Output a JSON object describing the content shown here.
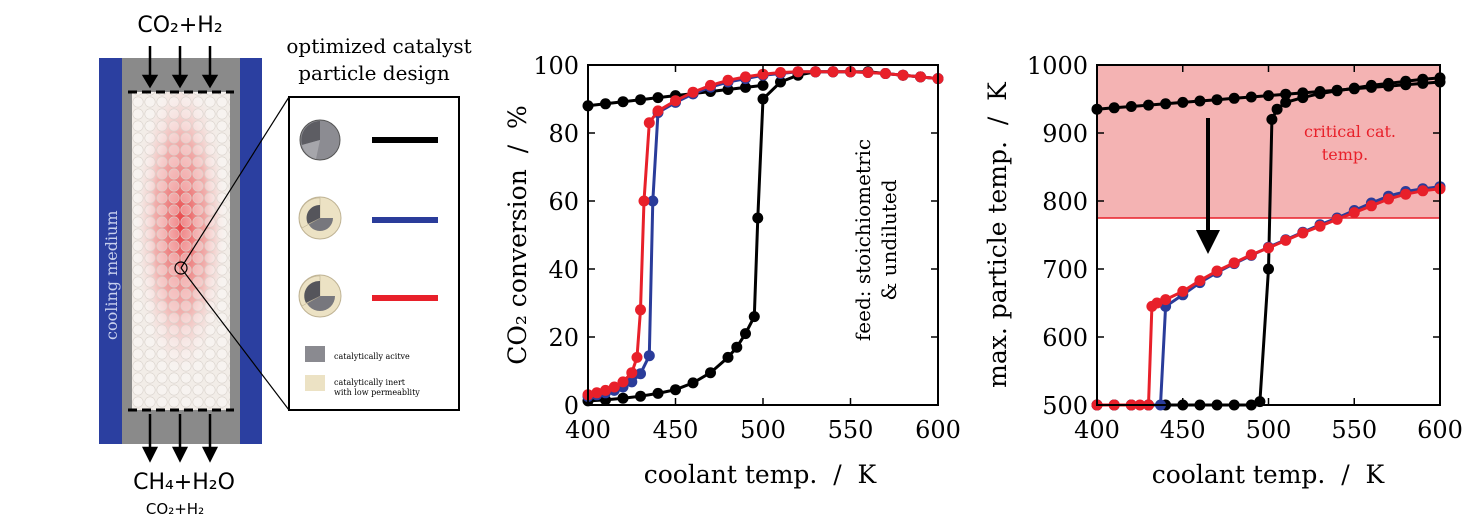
{
  "schematic": {
    "inlet_label": "CO₂+H₂",
    "outlet_label": "CH₄+H₂O",
    "outlet_sub_label": "CO₂+H₂",
    "cooling_label": "cooling medium",
    "design_title_line1": "optimized catalyst",
    "design_title_line2": "particle design",
    "legend_active": "catalytically acitve",
    "legend_inert_line1": "catalytically inert",
    "legend_inert_line2": "with low permeablity",
    "colors": {
      "cooling": "#2b3fa0",
      "reactor_wall": "#8a8a8a",
      "hotspot": "#e8393c",
      "active_core": "#6f6f74",
      "inert_shell": "#ece2c4"
    },
    "designs": [
      {
        "name": "fully active particle",
        "line_color": "#000000"
      },
      {
        "name": "core-shell particle A",
        "line_color": "#2a3c9a"
      },
      {
        "name": "core-shell particle B",
        "line_color": "#e8202a"
      }
    ]
  },
  "chart_data": [
    {
      "type": "line",
      "xlabel": "coolant temp.  /  K",
      "ylabel": "CO₂ conversion  /  %",
      "xlim": [
        400,
        600
      ],
      "ylim": [
        0,
        100
      ],
      "xticks": [
        "400",
        "450",
        "500",
        "550",
        "600"
      ],
      "yticks": [
        "0",
        "20",
        "40",
        "60",
        "80",
        "100"
      ],
      "annotation_line1": "feed: stoichiometric",
      "annotation_line2": "& undiluted",
      "series": [
        {
          "color": "#000000",
          "x": [
            400,
            410,
            420,
            430,
            440,
            450,
            460,
            470,
            480,
            485,
            490,
            495,
            497,
            500,
            510,
            520,
            530,
            540,
            550,
            560,
            570,
            580,
            590,
            600
          ],
          "y": [
            1.2,
            1.5,
            2,
            2.6,
            3.4,
            4.5,
            6.5,
            9.5,
            14,
            17,
            21,
            26,
            55,
            90,
            95,
            97,
            98,
            98,
            98,
            98,
            97.5,
            97,
            96.5,
            96
          ]
        },
        {
          "color": "#000000",
          "x": [
            400,
            410,
            420,
            430,
            440,
            450,
            460,
            470,
            480,
            490,
            500
          ],
          "y": [
            88,
            88.6,
            89.2,
            89.8,
            90.4,
            91,
            91.6,
            92.2,
            92.8,
            93.4,
            94
          ]
        },
        {
          "color": "#2a3c9a",
          "x": [
            400,
            405,
            410,
            415,
            420,
            425,
            430,
            435,
            437,
            440,
            450,
            460,
            470,
            480,
            490,
            500,
            510,
            520,
            530,
            540,
            550,
            560,
            570,
            580,
            590,
            600
          ],
          "y": [
            2.5,
            3,
            3.6,
            4.3,
            5.3,
            6.8,
            9.2,
            14.5,
            60,
            86,
            89,
            91.5,
            93.5,
            95,
            96,
            97,
            97.5,
            98,
            98,
            98,
            98,
            97.8,
            97.5,
            97,
            96.5,
            96
          ]
        },
        {
          "color": "#e8202a",
          "x": [
            400,
            405,
            410,
            415,
            420,
            425,
            428,
            430,
            432,
            435,
            440,
            450,
            460,
            470,
            480,
            490,
            500,
            510,
            520,
            530,
            540,
            550,
            560,
            570,
            580,
            590,
            600
          ],
          "y": [
            3,
            3.6,
            4.3,
            5.3,
            6.8,
            9.5,
            14,
            28,
            60,
            83,
            86.5,
            89.5,
            92,
            94,
            95.5,
            96.5,
            97.3,
            97.8,
            98,
            98,
            98,
            98,
            97.8,
            97.5,
            97,
            96.5,
            96
          ]
        }
      ]
    },
    {
      "type": "line",
      "xlabel": "coolant temp.  /  K",
      "ylabel": "max. particle temp.  /  K",
      "xlim": [
        400,
        600
      ],
      "ylim": [
        500,
        1000
      ],
      "xticks": [
        "400",
        "450",
        "500",
        "550",
        "600"
      ],
      "yticks": [
        "500",
        "600",
        "700",
        "800",
        "900",
        "1000"
      ],
      "critical_region_label_line1": "critical cat.",
      "critical_region_label_line2": "temp.",
      "critical_threshold": 775,
      "critical_color": "#f4b3b3",
      "series": [
        {
          "color": "#000000",
          "x": [
            400,
            410,
            420,
            430,
            440,
            450,
            460,
            470,
            480,
            490,
            495,
            500,
            502,
            505,
            510,
            520,
            530,
            540,
            550,
            560,
            570,
            580,
            590,
            600
          ],
          "y": [
            500,
            500,
            500,
            500,
            500,
            500,
            500,
            500,
            500,
            500,
            505,
            700,
            920,
            935,
            945,
            952,
            958,
            962,
            966,
            970,
            973,
            976,
            979,
            981
          ]
        },
        {
          "color": "#000000",
          "x": [
            400,
            410,
            420,
            430,
            440,
            450,
            460,
            470,
            480,
            490,
            500,
            510,
            520,
            530,
            540,
            550,
            560,
            570,
            580,
            590,
            600
          ],
          "y": [
            935,
            937,
            939,
            941,
            943,
            945,
            947,
            949,
            951,
            953,
            955,
            957,
            959,
            961,
            963,
            965,
            967,
            969,
            971,
            973,
            975
          ]
        },
        {
          "color": "#2a3c9a",
          "x": [
            400,
            410,
            420,
            430,
            437,
            440,
            450,
            460,
            470,
            480,
            490,
            500,
            510,
            520,
            530,
            540,
            550,
            560,
            570,
            580,
            590,
            600
          ],
          "y": [
            500,
            500,
            500,
            500,
            500,
            645,
            662,
            680,
            695,
            708,
            720,
            732,
            743,
            754,
            765,
            775,
            786,
            797,
            807,
            814,
            818,
            821
          ]
        },
        {
          "color": "#e8202a",
          "x": [
            400,
            410,
            420,
            425,
            430,
            432,
            435,
            440,
            450,
            460,
            470,
            480,
            490,
            500,
            510,
            520,
            530,
            540,
            550,
            560,
            570,
            580,
            590,
            600
          ],
          "y": [
            500,
            500,
            500,
            500,
            500,
            645,
            650,
            655,
            667,
            683,
            697,
            709,
            721,
            731,
            742,
            753,
            763,
            773,
            783,
            793,
            803,
            810,
            815,
            818
          ]
        }
      ]
    }
  ]
}
